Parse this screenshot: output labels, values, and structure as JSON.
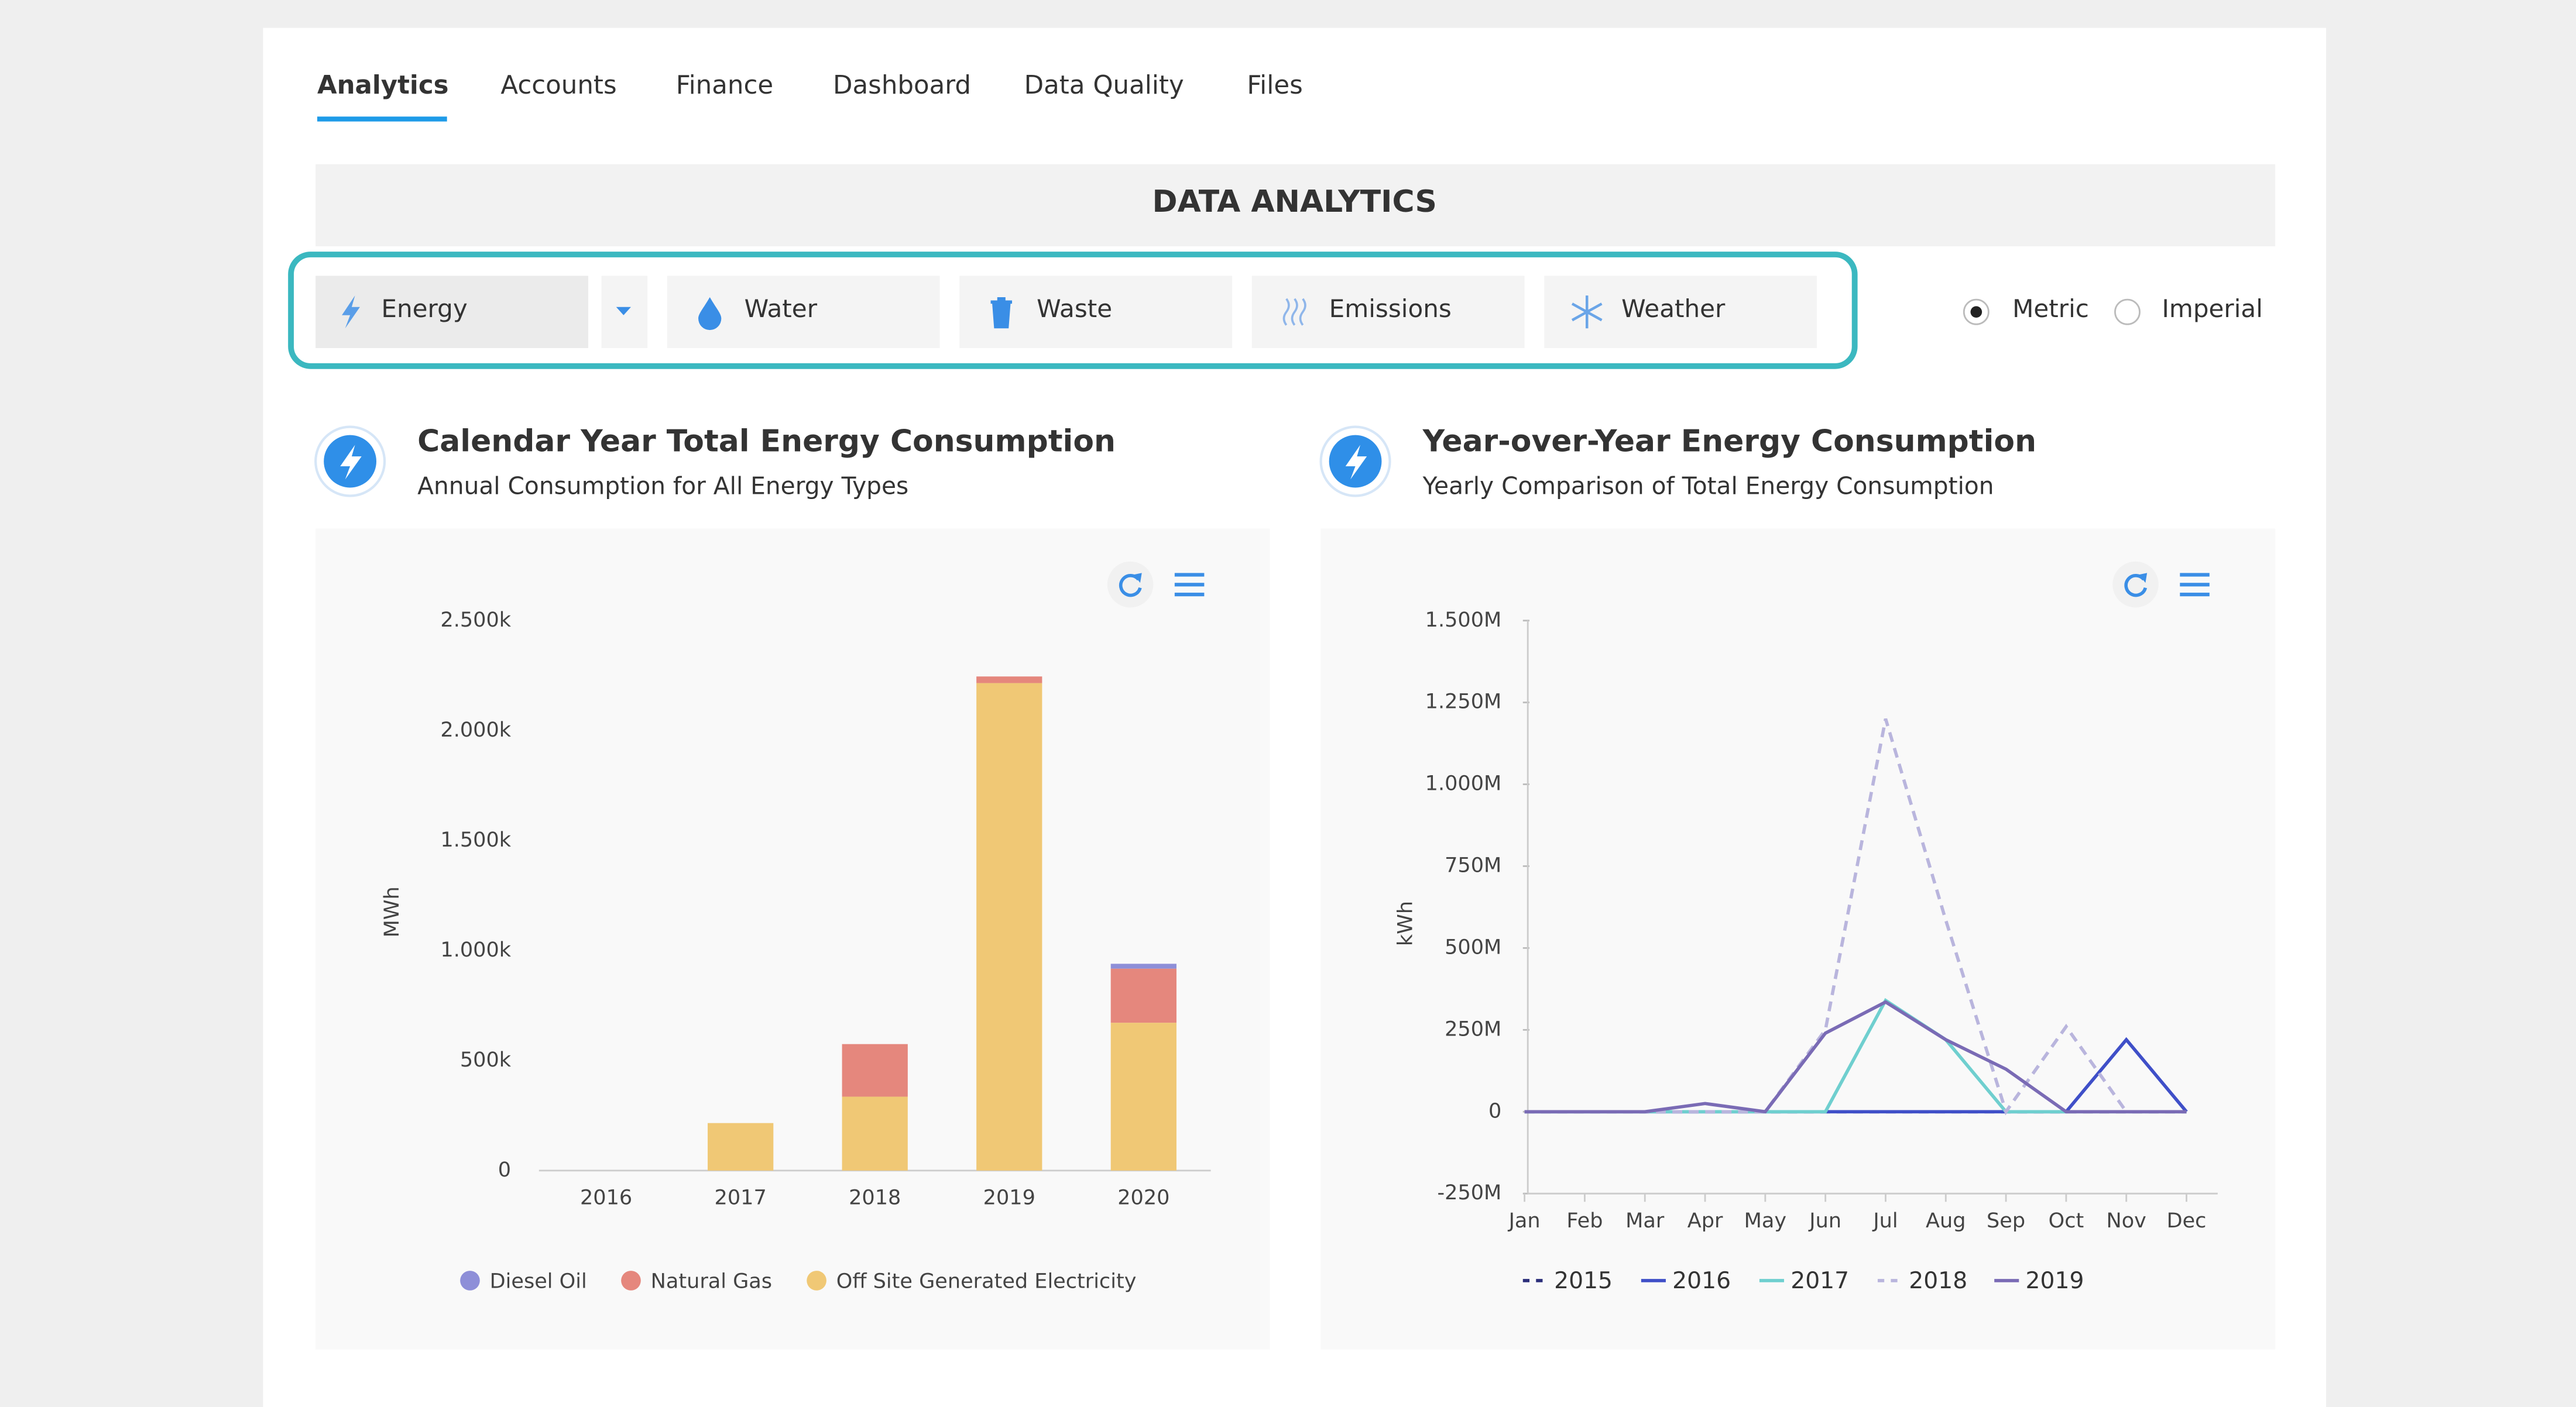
{
  "nav": {
    "tabs": [
      "Analytics",
      "Accounts",
      "Finance",
      "Dashboard",
      "Data Quality",
      "Files"
    ],
    "active": 0
  },
  "header": {
    "title": "DATA ANALYTICS"
  },
  "filters": [
    "Energy",
    "Water",
    "Waste",
    "Emissions",
    "Weather"
  ],
  "units": {
    "options": [
      "Metric",
      "Imperial"
    ],
    "selected": 0
  },
  "chart_data": [
    {
      "type": "bar",
      "stacked": true,
      "title": "Calendar Year Total Energy Consumption",
      "subtitle": "Annual Consumption for All Energy Types",
      "y_label": "MWh",
      "categories": [
        "2016",
        "2017",
        "2018",
        "2019",
        "2020"
      ],
      "series": [
        {
          "name": "Diesel Oil",
          "color": "#8e8fd8",
          "values": [
            0,
            0,
            0,
            0,
            22000
          ]
        },
        {
          "name": "Natural Gas",
          "color": "#e5877d",
          "values": [
            0,
            0,
            239000,
            30000,
            246000
          ]
        },
        {
          "name": "Off Site Generated Electricity",
          "color": "#f0c875",
          "values": [
            0,
            216000,
            336000,
            2216000,
            672000
          ]
        }
      ],
      "ylim": [
        0,
        2500000
      ],
      "yticks": [
        0,
        {
          "value": 500000,
          "label": "500k"
        },
        {
          "value": 1000000,
          "label": "1.000k"
        },
        {
          "value": 1500000,
          "label": "1.500k"
        },
        {
          "value": 2000000,
          "label": "2.000k"
        },
        {
          "value": 2500000,
          "label": "2.500k"
        }
      ]
    },
    {
      "type": "line",
      "title": "Year-over-Year Energy Consumption",
      "subtitle": "Yearly Comparison of Total Energy Consumption",
      "y_label": "kWh",
      "categories": [
        "Jan",
        "Feb",
        "Mar",
        "Apr",
        "May",
        "Jun",
        "Jul",
        "Aug",
        "Sep",
        "Oct",
        "Nov",
        "Dec"
      ],
      "series": [
        {
          "name": "2015",
          "color": "#2b2e7a",
          "style": "dashed",
          "values": [
            0,
            0,
            0,
            0,
            0,
            0,
            0,
            0,
            0,
            0,
            0,
            0
          ]
        },
        {
          "name": "2016",
          "color": "#3f4fc8",
          "style": "solid",
          "values": [
            0,
            0,
            0,
            0,
            0,
            0,
            0,
            0,
            0,
            0,
            220000000,
            0
          ]
        },
        {
          "name": "2017",
          "color": "#6fcfcf",
          "style": "solid",
          "values": [
            0,
            0,
            0,
            0,
            0,
            0,
            340000000,
            220000000,
            0,
            0,
            0,
            0
          ]
        },
        {
          "name": "2018",
          "color": "#b9b5dd",
          "style": "dashed",
          "values": [
            0,
            0,
            0,
            0,
            0,
            250000000,
            1200000000,
            585000000,
            0,
            260000000,
            0,
            0
          ]
        },
        {
          "name": "2019",
          "color": "#7a6bb5",
          "style": "solid",
          "values": [
            0,
            0,
            0,
            25000000,
            0,
            240000000,
            335000000,
            220000000,
            130000000,
            0,
            0,
            0
          ]
        }
      ],
      "ylim": [
        -250000000,
        1500000000
      ],
      "yticks": [
        {
          "value": -250000000,
          "label": "-250M"
        },
        0,
        {
          "value": 250000000,
          "label": "250M"
        },
        {
          "value": 500000000,
          "label": "500M"
        },
        {
          "value": 750000000,
          "label": "750M"
        },
        {
          "value": 1000000000,
          "label": "1.000M"
        },
        {
          "value": 1250000000,
          "label": "1.250M"
        },
        {
          "value": 1500000000,
          "label": "1.500M"
        }
      ]
    }
  ]
}
